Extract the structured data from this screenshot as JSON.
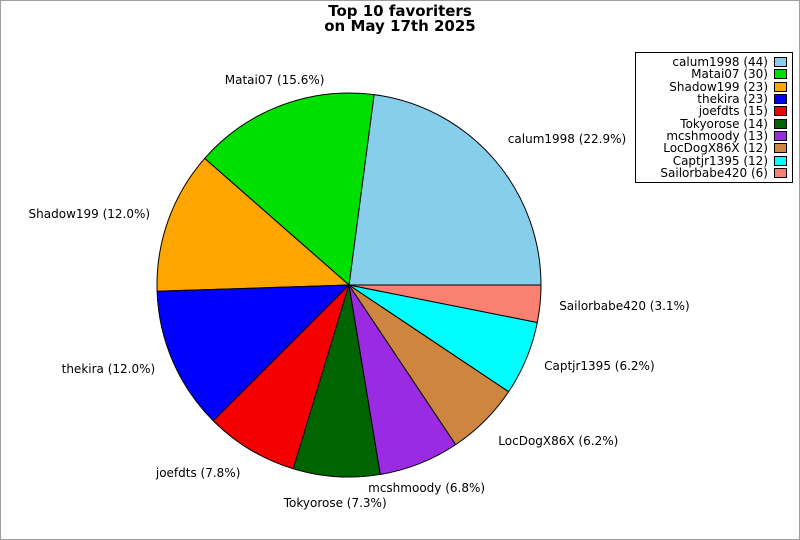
{
  "title": {
    "line1": "Top 10 favoriters",
    "line2": "on May 17th 2025"
  },
  "chart_data": {
    "type": "pie",
    "title": "Top 10 favoriters on May 17th 2025",
    "total": 192,
    "start_angle_deg": 0,
    "direction": "counterclockwise",
    "label_distance": 1.1,
    "edge_color": "#000000",
    "background_color": "#ffffff",
    "figure_border_color": "#9e9e9e",
    "legend_position": "upper right",
    "slices": [
      {
        "name": "calum1998",
        "count": 44,
        "pct": 22.9,
        "label": "calum1998 (22.9%)",
        "legend_label": "calum1998 (44)",
        "color": "#87CEEB"
      },
      {
        "name": "Matai07",
        "count": 30,
        "pct": 15.6,
        "label": "Matai07 (15.6%)",
        "legend_label": "Matai07 (30)",
        "color": "#00E000"
      },
      {
        "name": "Shadow199",
        "count": 23,
        "pct": 12.0,
        "label": "Shadow199 (12.0%)",
        "legend_label": "Shadow199 (23)",
        "color": "#FFA500"
      },
      {
        "name": "thekira",
        "count": 23,
        "pct": 12.0,
        "label": "thekira (12.0%)",
        "legend_label": "thekira (23)",
        "color": "#0000FF"
      },
      {
        "name": "joefdts",
        "count": 15,
        "pct": 7.8,
        "label": "joefdts (7.8%)",
        "legend_label": "joefdts (15)",
        "color": "#F50000"
      },
      {
        "name": "Tokyorose",
        "count": 14,
        "pct": 7.3,
        "label": "Tokyorose (7.3%)",
        "legend_label": "Tokyorose (14)",
        "color": "#006400"
      },
      {
        "name": "mcshmoody",
        "count": 13,
        "pct": 6.8,
        "label": "mcshmoody (6.8%)",
        "legend_label": "mcshmoody (13)",
        "color": "#9B2BE2"
      },
      {
        "name": "LocDogX86X",
        "count": 12,
        "pct": 6.2,
        "label": "LocDogX86X (6.2%)",
        "legend_label": "LocDogX86X (12)",
        "color": "#CD853F"
      },
      {
        "name": "Captjr1395",
        "count": 12,
        "pct": 6.2,
        "label": "Captjr1395 (6.2%)",
        "legend_label": "Captjr1395 (12)",
        "color": "#00FFFF"
      },
      {
        "name": "Sailorbabe420",
        "count": 6,
        "pct": 3.1,
        "label": "Sailorbabe420 (3.1%)",
        "legend_label": "Sailorbabe420 (6)",
        "color": "#FA8072"
      }
    ]
  }
}
